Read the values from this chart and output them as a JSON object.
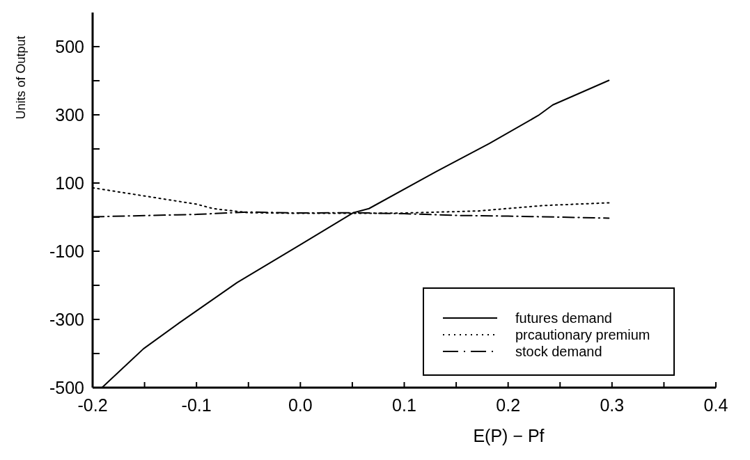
{
  "chart_data": {
    "type": "line",
    "xlabel": "E(P) − Pf",
    "ylabel": "Units of Output",
    "xlim": [
      -0.2,
      0.4
    ],
    "ylim": [
      -500,
      600
    ],
    "xticks": [
      -0.2,
      {
        "value": -0.15,
        "label": null
      },
      -0.1,
      {
        "value": -0.05,
        "label": null
      },
      {
        "value": 0,
        "label": "0.0"
      },
      {
        "value": 0.05,
        "label": null
      },
      0.1,
      {
        "value": 0.15,
        "label": null
      },
      0.2,
      {
        "value": 0.25,
        "label": null
      },
      0.3,
      {
        "value": 0.35,
        "label": null
      },
      0.4
    ],
    "yticks": [
      -500,
      {
        "value": -400,
        "label": null
      },
      -300,
      {
        "value": -200,
        "label": null
      },
      -100,
      {
        "value": 0,
        "label": null
      },
      100,
      {
        "value": 200,
        "label": null
      },
      300,
      {
        "value": 400,
        "label": null
      },
      500
    ],
    "grid": false,
    "legend": "bottom right",
    "marker": "none",
    "series": [
      {
        "name": "futures demand",
        "color": "#000000",
        "line_style": "solid",
        "x": [
          -0.191,
          -0.151,
          -0.117,
          -0.061,
          0,
          0.051,
          0.066,
          0.131,
          0.182,
          0.229,
          0.243,
          0.297
        ],
        "values": [
          -500,
          -386,
          -311,
          -192,
          -81,
          13,
          25,
          134,
          216,
          298,
          329,
          401
        ]
      },
      {
        "name": "prcautionary premium",
        "color": "#000000",
        "line_style": "dotted",
        "x": [
          -0.2,
          -0.1,
          -0.084,
          -0.05,
          0,
          0.05,
          0.1,
          0.171,
          0.234,
          0.297
        ],
        "values": [
          86,
          38,
          25,
          13,
          11,
          11,
          12,
          18,
          34,
          42
        ]
      },
      {
        "name": "stock demand",
        "color": "#000000",
        "line_style": "dashdot",
        "x": [
          -0.2,
          -0.1,
          -0.05,
          0,
          0.05,
          0.1,
          0.15,
          0.2,
          0.25,
          0.297
        ],
        "values": [
          1,
          8,
          15,
          12,
          13,
          10,
          5,
          3,
          0,
          -3
        ]
      }
    ]
  }
}
